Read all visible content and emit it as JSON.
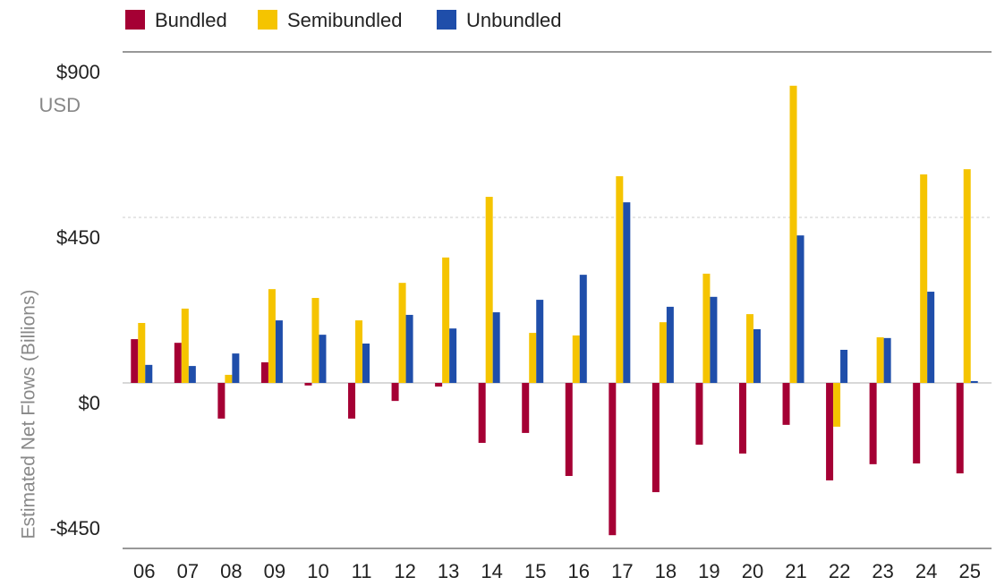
{
  "chart_data": {
    "type": "bar",
    "ylabel": "Estimated Net Flows (Billions)",
    "y_unit": "USD",
    "categories": [
      "06",
      "07",
      "08",
      "09",
      "10",
      "11",
      "12",
      "13",
      "14",
      "15",
      "16",
      "17",
      "18",
      "19",
      "20",
      "21",
      "22",
      "23",
      "24",
      "25"
    ],
    "series": [
      {
        "name": "Bundled",
        "color": "#a50034",
        "values": [
          119,
          109,
          -97,
          56,
          -7,
          -97,
          -49,
          -10,
          -163,
          -136,
          -253,
          -414,
          -297,
          -168,
          -192,
          -114,
          -265,
          -221,
          -219,
          -246
        ]
      },
      {
        "name": "Semibundled",
        "color": "#f5c400",
        "values": [
          163,
          202,
          22,
          255,
          231,
          170,
          272,
          341,
          506,
          136,
          129,
          562,
          165,
          297,
          187,
          808,
          -119,
          124,
          567,
          581
        ]
      },
      {
        "name": "Unbundled",
        "color": "#1f4eaa",
        "values": [
          49,
          46,
          80,
          170,
          131,
          107,
          185,
          148,
          192,
          226,
          294,
          491,
          207,
          234,
          146,
          401,
          90,
          122,
          248,
          5
        ]
      }
    ],
    "ylim": [
      -450,
      900
    ],
    "yticks": [
      {
        "value": -450,
        "label": "-$450"
      },
      {
        "value": 0,
        "label": "$0"
      },
      {
        "value": 450,
        "label": "$450"
      },
      {
        "value": 900,
        "label": "$900"
      }
    ],
    "grid": true
  }
}
